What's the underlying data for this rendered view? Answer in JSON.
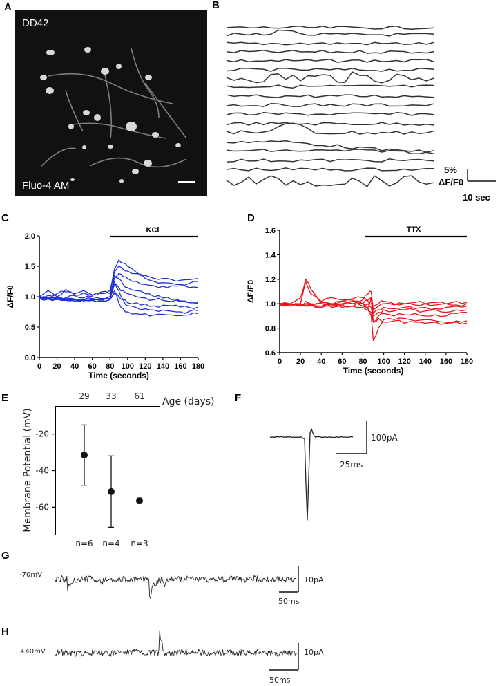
{
  "panels": {
    "a": {
      "label": "A",
      "culture_label": "DD42",
      "dye_label": "Fluo-4 AM"
    },
    "b": {
      "label": "B",
      "scale_y": "5%",
      "scale_y_unit": "ΔF/F0",
      "scale_x": "10 sec"
    },
    "c": {
      "label": "C",
      "treatment": "KCl"
    },
    "d": {
      "label": "D",
      "treatment": "TTX"
    },
    "e": {
      "label": "E"
    },
    "f": {
      "label": "F",
      "scale_y": "100pA",
      "scale_x": "25ms"
    },
    "g": {
      "label": "G",
      "holding": "-70mV",
      "scale_y": "10pA",
      "scale_x": "50ms"
    },
    "h": {
      "label": "H",
      "holding": "+40mV",
      "scale_y": "10pA",
      "scale_x": "50ms"
    }
  },
  "colors": {
    "panel_c_traces": "#1f2fd6",
    "panel_d_traces": "#e8121a",
    "traces": "#333333"
  },
  "chart_data": [
    {
      "id": "c",
      "type": "line",
      "xlabel": "Time (seconds)",
      "ylabel": "ΔF/F0",
      "xlim": [
        0,
        180
      ],
      "ylim": [
        0,
        2
      ],
      "xticks": [
        "0",
        "20",
        "40",
        "60",
        "80",
        "100",
        "120",
        "140",
        "160",
        "180"
      ],
      "yticks": [
        "0.0",
        "0.5",
        "1.0",
        "1.5",
        "2.0"
      ],
      "treatment_bar": [
        80,
        180
      ],
      "x": [
        0,
        10,
        20,
        30,
        40,
        50,
        60,
        70,
        80,
        85,
        90,
        95,
        100,
        110,
        120,
        130,
        140,
        150,
        160,
        170,
        180
      ],
      "series": [
        {
          "values": [
            1.0,
            1.1,
            1.0,
            1.12,
            1.05,
            1.1,
            1.03,
            1.08,
            1.05,
            1.45,
            1.6,
            1.55,
            1.5,
            1.4,
            1.35,
            1.3,
            1.3,
            1.28,
            1.27,
            1.28,
            1.3
          ]
        },
        {
          "values": [
            1.0,
            1.02,
            1.05,
            1.08,
            1.03,
            1.06,
            1.02,
            1.05,
            1.1,
            1.4,
            1.5,
            1.45,
            1.42,
            1.38,
            1.3,
            1.25,
            1.23,
            1.22,
            1.2,
            1.22,
            1.25
          ]
        },
        {
          "values": [
            1.0,
            0.98,
            1.0,
            0.97,
            1.02,
            0.98,
            1.0,
            0.97,
            1.0,
            1.3,
            1.38,
            1.33,
            1.3,
            1.25,
            1.2,
            1.18,
            1.17,
            1.18,
            1.18,
            1.15,
            1.15
          ]
        },
        {
          "values": [
            0.98,
            0.97,
            0.95,
            0.98,
            0.96,
            0.95,
            0.97,
            0.95,
            1.0,
            1.35,
            1.3,
            1.2,
            1.15,
            1.1,
            1.05,
            1.0,
            0.98,
            0.95,
            0.93,
            0.9,
            0.88
          ]
        },
        {
          "values": [
            0.98,
            0.96,
            0.97,
            0.95,
            0.96,
            0.94,
            0.95,
            0.93,
            0.97,
            1.2,
            1.15,
            1.1,
            1.05,
            1.0,
            0.98,
            0.95,
            0.94,
            0.92,
            0.92,
            0.9,
            0.9
          ]
        },
        {
          "values": [
            0.97,
            0.96,
            0.98,
            0.94,
            0.95,
            0.96,
            0.94,
            0.95,
            0.96,
            1.05,
            1.0,
            0.95,
            0.9,
            0.9,
            0.88,
            0.85,
            0.86,
            0.85,
            0.83,
            0.82,
            0.83
          ]
        },
        {
          "values": [
            0.97,
            0.98,
            0.96,
            0.95,
            0.93,
            0.95,
            0.94,
            0.93,
            0.95,
            1.25,
            1.1,
            0.95,
            0.85,
            0.82,
            0.8,
            0.78,
            0.78,
            0.76,
            0.75,
            0.76,
            0.77
          ]
        },
        {
          "values": [
            0.99,
            0.97,
            0.96,
            0.94,
            0.96,
            0.93,
            0.94,
            0.92,
            0.95,
            1.1,
            0.9,
            0.8,
            0.75,
            0.72,
            0.72,
            0.7,
            0.71,
            0.7,
            0.69,
            0.7,
            0.72
          ]
        }
      ]
    },
    {
      "id": "d",
      "type": "line",
      "xlabel": "Time (seconds)",
      "ylabel": "ΔF/F0",
      "xlim": [
        0,
        180
      ],
      "ylim": [
        0.6,
        1.6
      ],
      "xticks": [
        "0",
        "20",
        "40",
        "60",
        "80",
        "100",
        "120",
        "140",
        "160",
        "180"
      ],
      "yticks": [
        "0.6",
        "0.8",
        "1.0",
        "1.2",
        "1.4",
        "1.6"
      ],
      "treatment_bar": [
        82,
        180
      ],
      "x": [
        0,
        10,
        20,
        25,
        30,
        40,
        50,
        60,
        70,
        80,
        85,
        88,
        90,
        95,
        100,
        110,
        120,
        130,
        140,
        150,
        160,
        170,
        180
      ],
      "series": [
        {
          "values": [
            0.98,
            1.0,
            1.05,
            1.2,
            1.12,
            1.0,
            0.99,
            1.02,
            1.0,
            1.03,
            1.08,
            1.1,
            0.95,
            0.98,
            1.0,
            0.99,
            1.0,
            1.01,
            1.0,
            1.01,
            1.0,
            1.02,
            1.01
          ]
        },
        {
          "values": [
            1.0,
            0.99,
            1.0,
            1.18,
            1.08,
            1.02,
            1.05,
            1.03,
            1.04,
            1.05,
            1.02,
            1.0,
            0.98,
            1.0,
            1.02,
            1.0,
            1.0,
            0.99,
            1.0,
            0.99,
            1.0,
            0.99,
            1.0
          ]
        },
        {
          "values": [
            0.99,
            1.0,
            0.98,
            1.02,
            1.0,
            1.01,
            1.0,
            1.02,
            1.03,
            1.0,
            1.03,
            1.05,
            0.92,
            0.95,
            0.97,
            0.96,
            0.97,
            0.96,
            0.97,
            0.96,
            0.97,
            0.98,
            0.98
          ]
        },
        {
          "values": [
            1.0,
            0.98,
            1.0,
            0.99,
            1.0,
            0.98,
            0.99,
            1.0,
            1.02,
            1.0,
            1.0,
            0.97,
            0.9,
            0.93,
            0.95,
            0.94,
            0.95,
            0.95,
            0.94,
            0.95,
            0.93,
            0.95,
            0.95
          ]
        },
        {
          "values": [
            0.99,
            1.0,
            0.99,
            1.0,
            0.98,
            1.0,
            0.97,
            0.99,
            1.0,
            0.98,
            0.97,
            1.05,
            0.85,
            0.9,
            0.92,
            0.9,
            0.91,
            0.92,
            0.9,
            0.91,
            0.9,
            0.92,
            0.93
          ]
        },
        {
          "values": [
            0.98,
            0.99,
            1.0,
            0.98,
            0.99,
            0.97,
            0.98,
            0.97,
            0.98,
            0.97,
            0.95,
            0.9,
            0.7,
            0.8,
            0.87,
            0.87,
            0.88,
            0.86,
            0.87,
            0.86,
            0.85,
            0.86,
            0.86
          ]
        },
        {
          "values": [
            1.0,
            0.99,
            0.98,
            1.0,
            0.99,
            0.98,
            1.0,
            0.99,
            0.98,
            1.0,
            0.96,
            0.93,
            0.85,
            0.88,
            0.85,
            0.86,
            0.84,
            0.85,
            0.84,
            0.85,
            0.84,
            0.85,
            0.84
          ]
        }
      ]
    },
    {
      "id": "e",
      "type": "scatter",
      "ylabel": "Membrane Potential (mV)",
      "xlabel": "Age (days)",
      "categories": [
        "29",
        "33",
        "61"
      ],
      "values": [
        -31.5,
        -51.5,
        -56.5
      ],
      "error": [
        16.5,
        19.5,
        1.5
      ],
      "n_labels": [
        "n=6",
        "n=4",
        "n=3"
      ],
      "yticks": [
        "-20",
        "-40",
        "-60"
      ],
      "ylim": [
        -75,
        -5
      ]
    }
  ]
}
